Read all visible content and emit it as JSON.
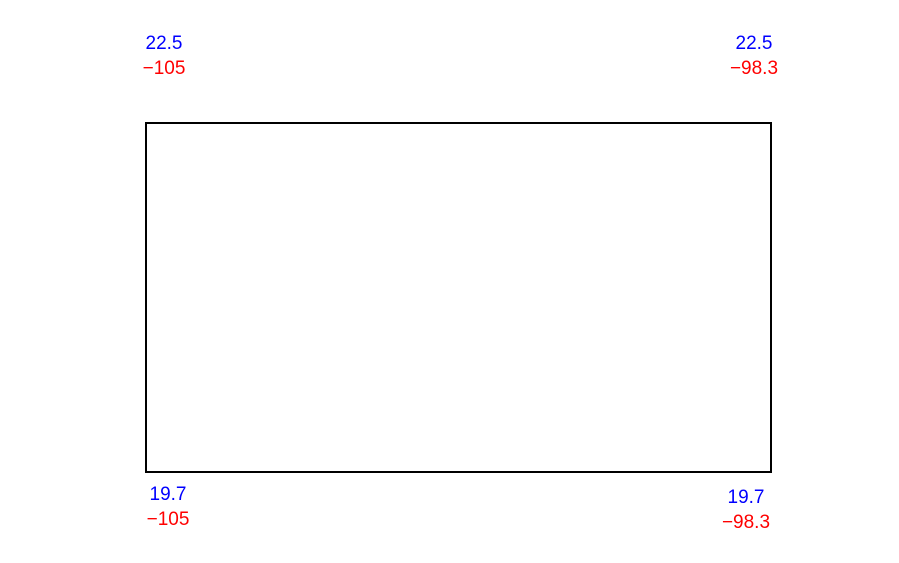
{
  "corners": {
    "top_left": {
      "lat": "22.5",
      "lon": "−105"
    },
    "top_right": {
      "lat": "22.5",
      "lon": "−98.3"
    },
    "bottom_left": {
      "lat": "19.7",
      "lon": "−105"
    },
    "bottom_right": {
      "lat": "19.7",
      "lon": "−98.3"
    }
  },
  "colors": {
    "latitude": "#0000ff",
    "longitude": "#ff0000",
    "frame": "#000000"
  }
}
